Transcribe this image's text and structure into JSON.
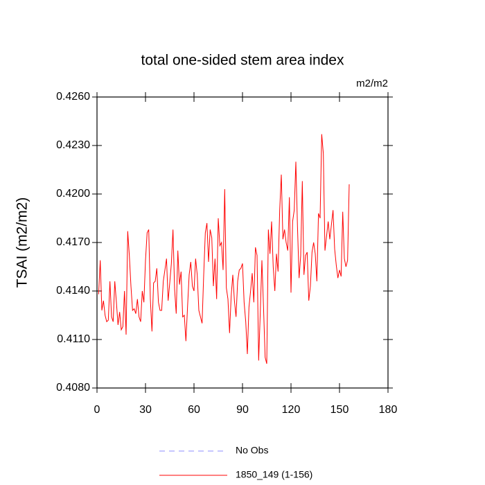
{
  "chart_data": {
    "type": "line",
    "title": "total one-sided stem area index",
    "units": "m2/m2",
    "ylabel": "TSAI  (m2/m2)",
    "x": [
      1,
      2,
      3,
      4,
      5,
      6,
      7,
      8,
      9,
      10,
      11,
      12,
      13,
      14,
      15,
      16,
      17,
      18,
      19,
      20,
      21,
      22,
      23,
      24,
      25,
      26,
      27,
      28,
      29,
      30,
      31,
      32,
      33,
      34,
      35,
      36,
      37,
      38,
      39,
      40,
      41,
      42,
      43,
      44,
      45,
      46,
      47,
      48,
      49,
      50,
      51,
      52,
      53,
      54,
      55,
      56,
      57,
      58,
      59,
      60,
      61,
      62,
      63,
      64,
      65,
      66,
      67,
      68,
      69,
      70,
      71,
      72,
      73,
      74,
      75,
      76,
      77,
      78,
      79,
      80,
      81,
      82,
      83,
      84,
      85,
      86,
      87,
      88,
      89,
      90,
      91,
      92,
      93,
      94,
      95,
      96,
      97,
      98,
      99,
      100,
      101,
      102,
      103,
      104,
      105,
      106,
      107,
      108,
      109,
      110,
      111,
      112,
      113,
      114,
      115,
      116,
      117,
      118,
      119,
      120,
      121,
      122,
      123,
      124,
      125,
      126,
      127,
      128,
      129,
      130,
      131,
      132,
      133,
      134,
      135,
      136,
      137,
      138,
      139,
      140,
      141,
      142,
      143,
      144,
      145,
      146,
      147,
      148,
      149,
      150,
      151,
      152,
      153,
      154,
      155,
      156
    ],
    "series": [
      {
        "name": "No Obs",
        "color": "#8c8cff",
        "dashed": true,
        "values": null
      },
      {
        "name": "1850_149 (1-156)",
        "color": "#ff0000",
        "dashed": false,
        "values": [
          0.4138,
          0.4159,
          0.4128,
          0.4134,
          0.4125,
          0.4121,
          0.4122,
          0.4146,
          0.4124,
          0.4121,
          0.4146,
          0.4133,
          0.4119,
          0.4127,
          0.4116,
          0.4118,
          0.414,
          0.4113,
          0.4177,
          0.4162,
          0.4143,
          0.4128,
          0.4129,
          0.4126,
          0.4135,
          0.4124,
          0.4121,
          0.414,
          0.4133,
          0.4159,
          0.4176,
          0.4178,
          0.4135,
          0.4115,
          0.4145,
          0.4146,
          0.4154,
          0.4133,
          0.4128,
          0.4128,
          0.4146,
          0.4153,
          0.416,
          0.4134,
          0.4145,
          0.4157,
          0.4178,
          0.4141,
          0.4126,
          0.4165,
          0.4144,
          0.4152,
          0.4124,
          0.4125,
          0.4109,
          0.413,
          0.415,
          0.4158,
          0.4143,
          0.414,
          0.416,
          0.415,
          0.4128,
          0.4124,
          0.412,
          0.415,
          0.4176,
          0.4182,
          0.4158,
          0.4178,
          0.4173,
          0.4143,
          0.416,
          0.4135,
          0.4185,
          0.4168,
          0.417,
          0.4153,
          0.4203,
          0.4142,
          0.4135,
          0.4114,
          0.4137,
          0.415,
          0.4134,
          0.4124,
          0.4146,
          0.4153,
          0.4154,
          0.4157,
          0.4133,
          0.4121,
          0.4101,
          0.413,
          0.414,
          0.4151,
          0.4133,
          0.4167,
          0.4162,
          0.4097,
          0.4127,
          0.4159,
          0.413,
          0.4099,
          0.4095,
          0.4178,
          0.4163,
          0.4183,
          0.4155,
          0.414,
          0.4163,
          0.4152,
          0.419,
          0.4212,
          0.4172,
          0.4178,
          0.417,
          0.4165,
          0.4198,
          0.4139,
          0.4183,
          0.419,
          0.422,
          0.418,
          0.4148,
          0.4162,
          0.4208,
          0.415,
          0.4162,
          0.4164,
          0.4134,
          0.4143,
          0.4164,
          0.417,
          0.4163,
          0.4146,
          0.4188,
          0.4185,
          0.4237,
          0.4225,
          0.4165,
          0.4174,
          0.4183,
          0.4172,
          0.4181,
          0.419,
          0.4166,
          0.4156,
          0.4148,
          0.4153,
          0.4149,
          0.4189,
          0.416,
          0.4155,
          0.4159,
          0.4206
        ]
      }
    ],
    "xlim": [
      0,
      180
    ],
    "xticks": [
      0,
      30,
      60,
      90,
      120,
      150,
      180
    ],
    "ylim": [
      0.408,
      0.426
    ],
    "yticks": [
      {
        "value": 0.408,
        "label": "0.4080"
      },
      {
        "value": 0.411,
        "label": "0.4110"
      },
      {
        "value": 0.414,
        "label": "0.4140"
      },
      {
        "value": 0.417,
        "label": "0.4170"
      },
      {
        "value": 0.42,
        "label": "0.4200"
      },
      {
        "value": 0.423,
        "label": "0.4230"
      },
      {
        "value": 0.426,
        "label": "0.4260"
      }
    ],
    "grid": false
  }
}
